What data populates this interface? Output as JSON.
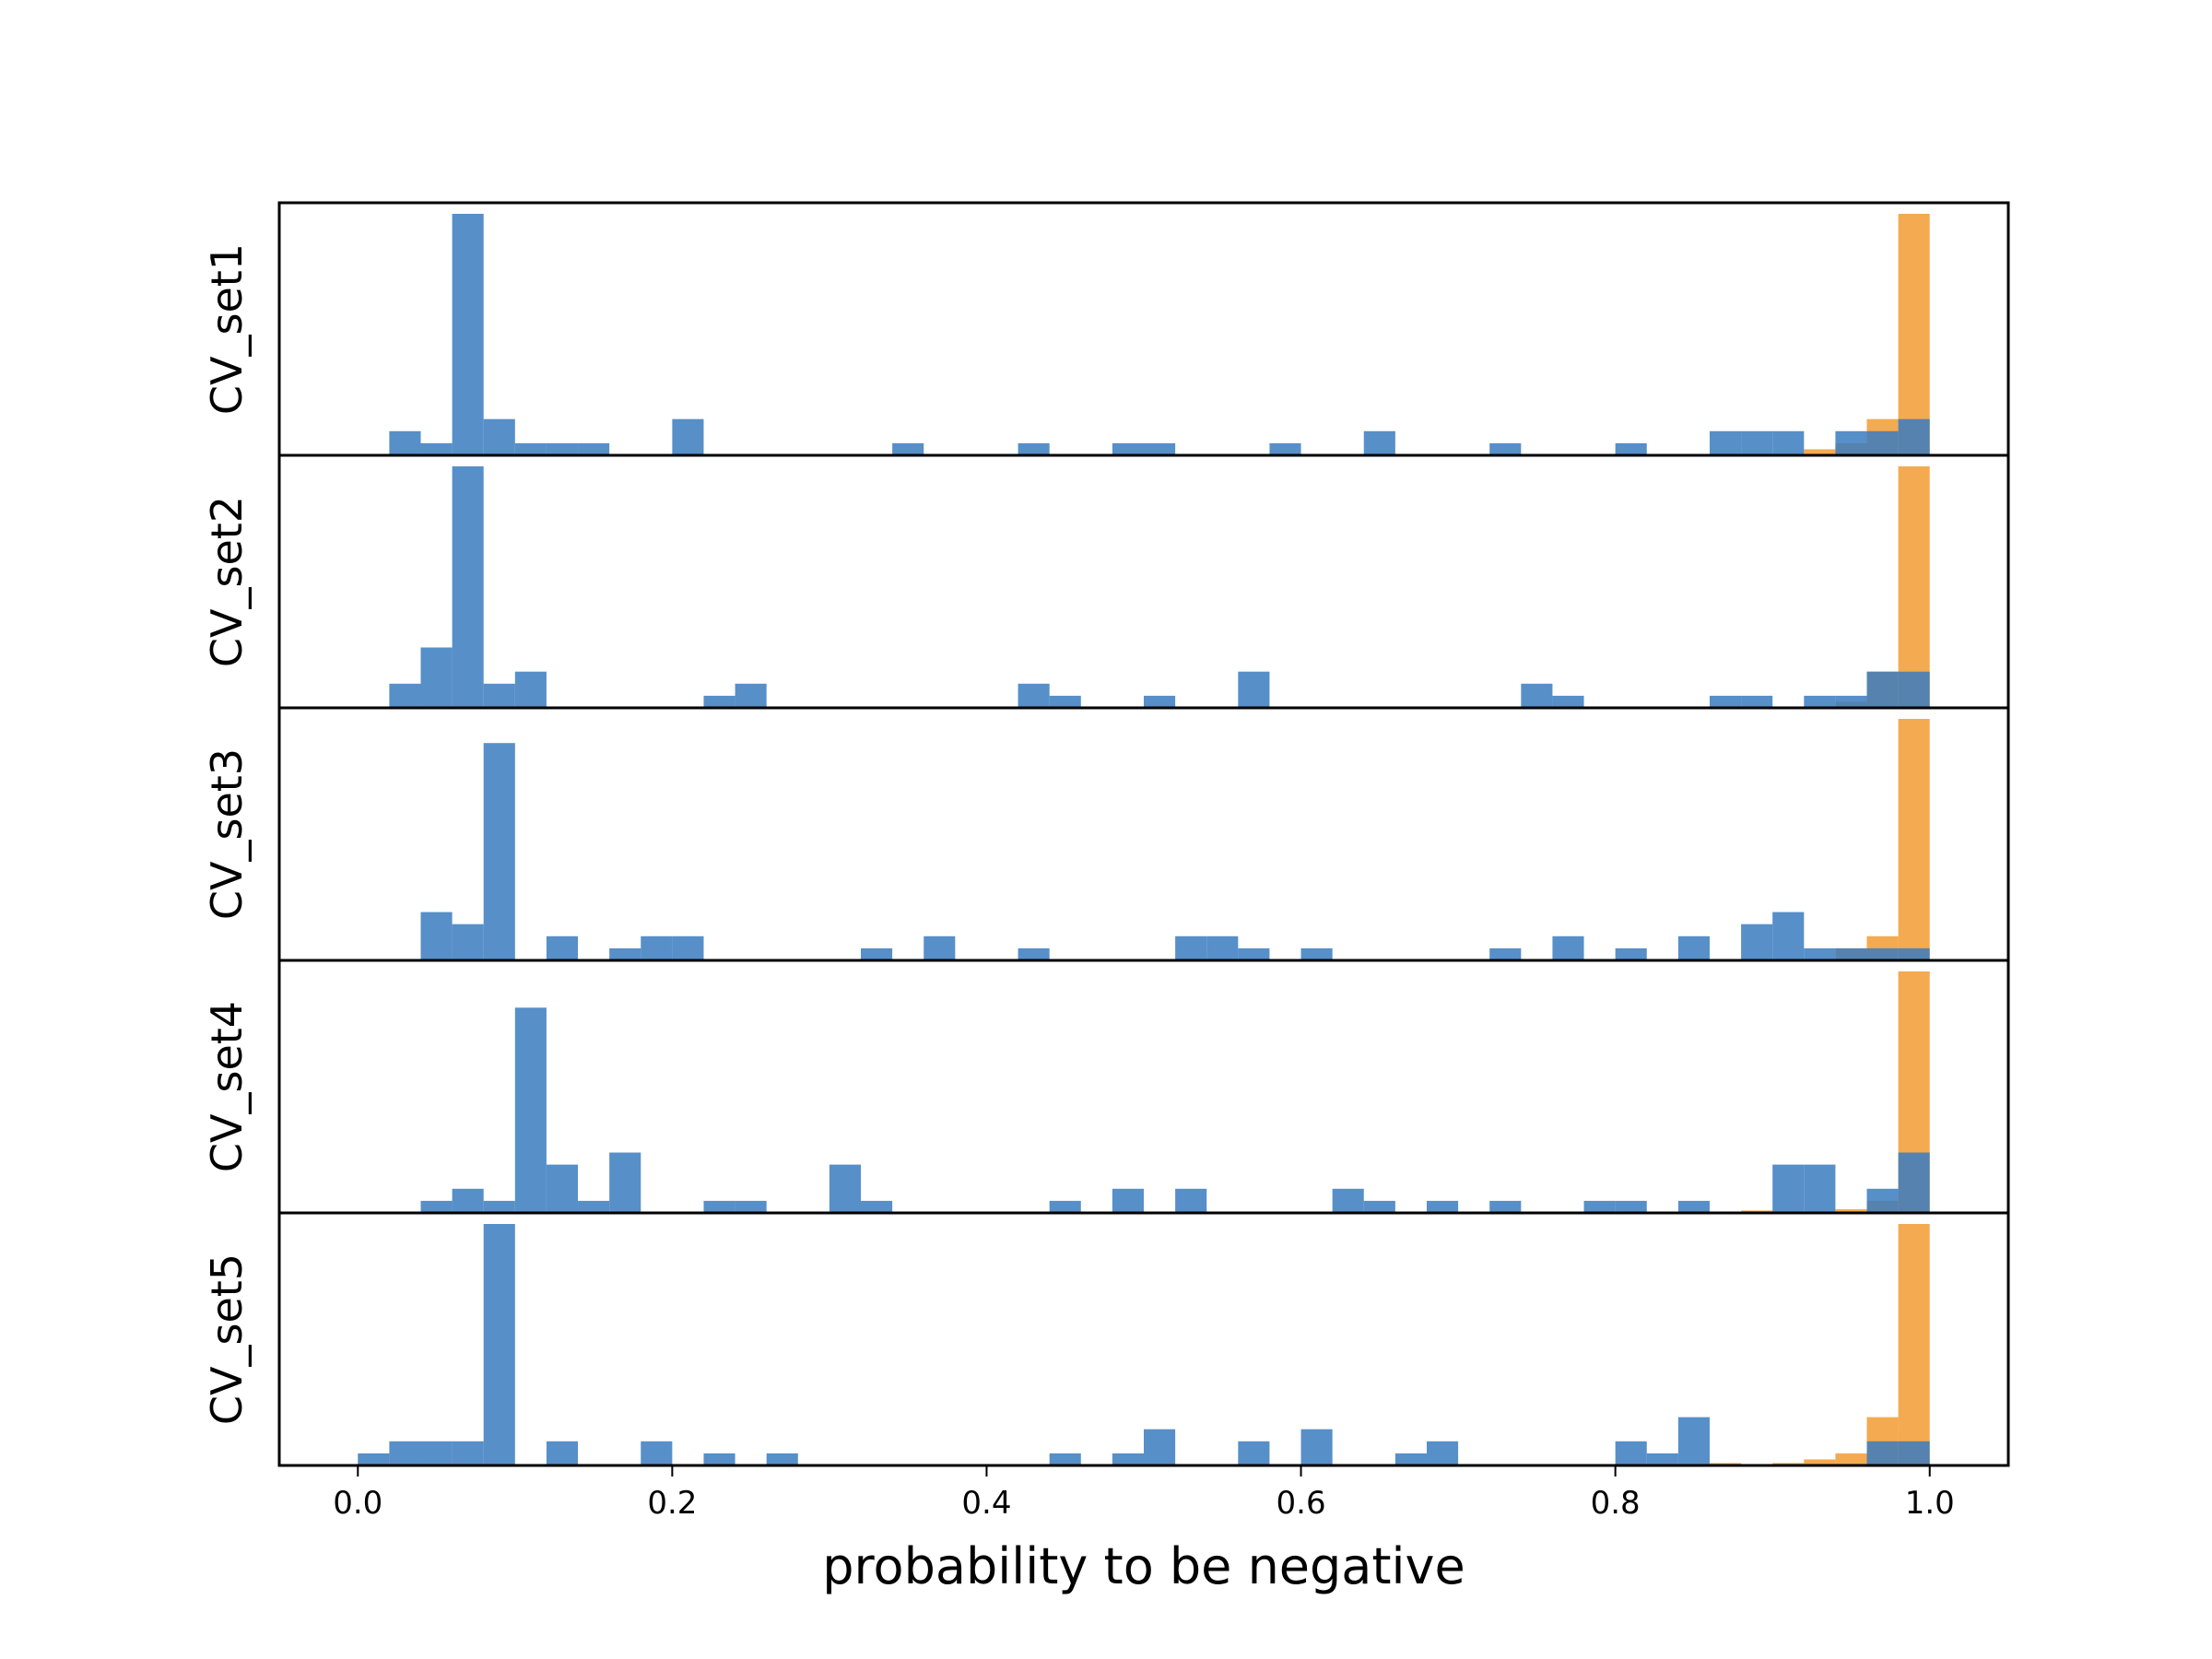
{
  "chart_data": {
    "type": "bar",
    "xlabel": "probability to be negative",
    "xlim": [
      -0.05,
      1.05
    ],
    "xticks": [
      "0.0",
      "0.2",
      "0.4",
      "0.6",
      "0.8",
      "1.0"
    ],
    "bin_width": 0.02,
    "colors": {
      "blue": "#3a7bbf",
      "orange": "#f29e38"
    },
    "panels": [
      {
        "label": "CV_set1",
        "blue": [
          [
            0.02,
            2
          ],
          [
            0.04,
            1
          ],
          [
            0.06,
            20
          ],
          [
            0.08,
            3
          ],
          [
            0.1,
            1
          ],
          [
            0.12,
            1
          ],
          [
            0.14,
            1
          ],
          [
            0.2,
            3
          ],
          [
            0.34,
            1
          ],
          [
            0.42,
            1
          ],
          [
            0.48,
            1
          ],
          [
            0.5,
            1
          ],
          [
            0.58,
            1
          ],
          [
            0.64,
            2
          ],
          [
            0.72,
            1
          ],
          [
            0.8,
            1
          ],
          [
            0.86,
            2
          ],
          [
            0.88,
            2
          ],
          [
            0.9,
            2
          ],
          [
            0.94,
            2
          ],
          [
            0.96,
            2
          ],
          [
            0.98,
            3
          ]
        ],
        "orange": [
          [
            0.92,
            0.5
          ],
          [
            0.94,
            1
          ],
          [
            0.96,
            3
          ],
          [
            0.98,
            20
          ]
        ]
      },
      {
        "label": "CV_set2",
        "blue": [
          [
            0.02,
            2
          ],
          [
            0.04,
            5
          ],
          [
            0.06,
            20
          ],
          [
            0.08,
            2
          ],
          [
            0.1,
            3
          ],
          [
            0.22,
            1
          ],
          [
            0.24,
            2
          ],
          [
            0.42,
            2
          ],
          [
            0.44,
            1
          ],
          [
            0.5,
            1
          ],
          [
            0.56,
            3
          ],
          [
            0.74,
            2
          ],
          [
            0.76,
            1
          ],
          [
            0.86,
            1
          ],
          [
            0.88,
            1
          ],
          [
            0.92,
            1
          ],
          [
            0.94,
            1
          ],
          [
            0.96,
            3
          ],
          [
            0.98,
            3
          ]
        ],
        "orange": [
          [
            0.94,
            0.5
          ],
          [
            0.96,
            3
          ],
          [
            0.98,
            20
          ]
        ]
      },
      {
        "label": "CV_set3",
        "blue": [
          [
            0.04,
            4
          ],
          [
            0.06,
            3
          ],
          [
            0.08,
            18
          ],
          [
            0.12,
            2
          ],
          [
            0.16,
            1
          ],
          [
            0.18,
            2
          ],
          [
            0.2,
            2
          ],
          [
            0.32,
            1
          ],
          [
            0.36,
            2
          ],
          [
            0.42,
            1
          ],
          [
            0.52,
            2
          ],
          [
            0.54,
            2
          ],
          [
            0.56,
            1
          ],
          [
            0.6,
            1
          ],
          [
            0.72,
            1
          ],
          [
            0.76,
            2
          ],
          [
            0.8,
            1
          ],
          [
            0.84,
            2
          ],
          [
            0.88,
            3
          ],
          [
            0.9,
            4
          ],
          [
            0.92,
            1
          ],
          [
            0.94,
            1
          ],
          [
            0.96,
            1
          ],
          [
            0.98,
            1
          ]
        ],
        "orange": [
          [
            0.94,
            1
          ],
          [
            0.96,
            2
          ],
          [
            0.98,
            20
          ]
        ]
      },
      {
        "label": "CV_set4",
        "blue": [
          [
            0.04,
            1
          ],
          [
            0.06,
            2
          ],
          [
            0.08,
            1
          ],
          [
            0.1,
            17
          ],
          [
            0.12,
            4
          ],
          [
            0.14,
            1
          ],
          [
            0.16,
            5
          ],
          [
            0.22,
            1
          ],
          [
            0.24,
            1
          ],
          [
            0.3,
            4
          ],
          [
            0.32,
            1
          ],
          [
            0.44,
            1
          ],
          [
            0.48,
            2
          ],
          [
            0.52,
            2
          ],
          [
            0.62,
            2
          ],
          [
            0.64,
            1
          ],
          [
            0.68,
            1
          ],
          [
            0.72,
            1
          ],
          [
            0.78,
            1
          ],
          [
            0.8,
            1
          ],
          [
            0.84,
            1
          ],
          [
            0.9,
            4
          ],
          [
            0.92,
            4
          ],
          [
            0.96,
            2
          ],
          [
            0.98,
            5
          ]
        ],
        "orange": [
          [
            0.88,
            0.2
          ],
          [
            0.94,
            0.3
          ],
          [
            0.96,
            1
          ],
          [
            0.98,
            20
          ]
        ]
      },
      {
        "label": "CV_set5",
        "blue": [
          [
            0.0,
            1
          ],
          [
            0.02,
            2
          ],
          [
            0.04,
            2
          ],
          [
            0.06,
            2
          ],
          [
            0.08,
            20
          ],
          [
            0.12,
            2
          ],
          [
            0.18,
            2
          ],
          [
            0.22,
            1
          ],
          [
            0.26,
            1
          ],
          [
            0.44,
            1
          ],
          [
            0.48,
            1
          ],
          [
            0.5,
            3
          ],
          [
            0.56,
            2
          ],
          [
            0.6,
            3
          ],
          [
            0.66,
            1
          ],
          [
            0.68,
            2
          ],
          [
            0.8,
            2
          ],
          [
            0.82,
            1
          ],
          [
            0.84,
            4
          ],
          [
            0.96,
            2
          ],
          [
            0.98,
            2
          ]
        ],
        "orange": [
          [
            0.86,
            0.2
          ],
          [
            0.9,
            0.2
          ],
          [
            0.92,
            0.5
          ],
          [
            0.94,
            1
          ],
          [
            0.96,
            4
          ],
          [
            0.98,
            20
          ]
        ]
      }
    ]
  }
}
